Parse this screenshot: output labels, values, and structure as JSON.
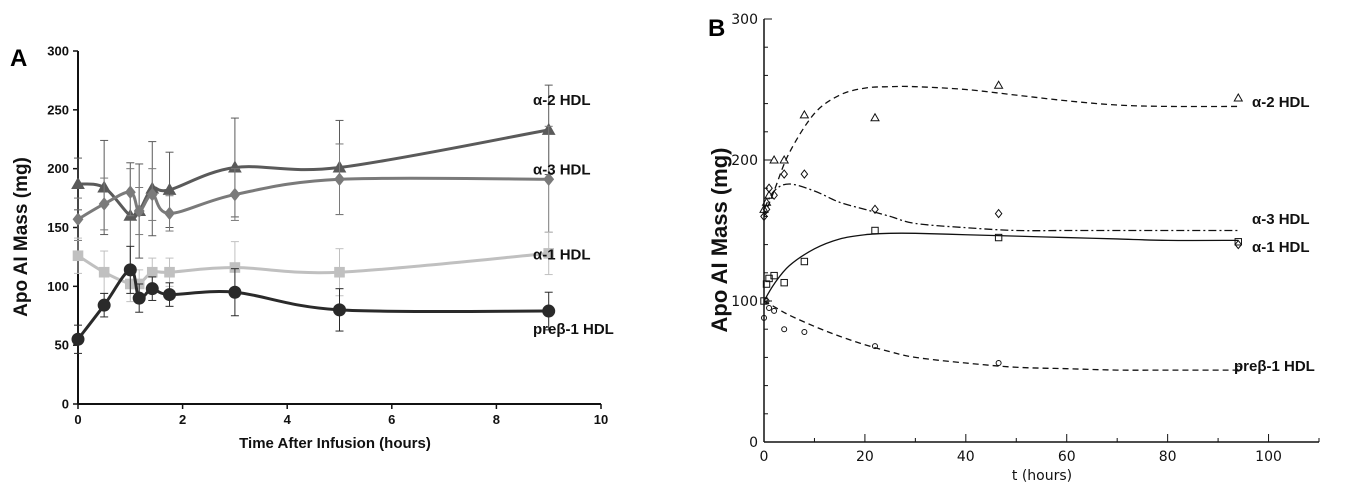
{
  "chart_data": [
    {
      "panel": "A",
      "type": "line",
      "xlabel": "Time After Infusion (hours)",
      "ylabel": "Apo AI Mass (mg)",
      "xlim": [
        0,
        10
      ],
      "ylim": [
        0,
        300
      ],
      "xticks": [
        "0",
        "2",
        "4",
        "6",
        "8",
        "10"
      ],
      "yticks": [
        "0",
        "50",
        "100",
        "150",
        "200",
        "250",
        "300"
      ],
      "grid": false,
      "series": [
        {
          "name": "α-2 HDL",
          "marker": "triangle",
          "color": "#5a5a5a",
          "x": [
            0,
            0.5,
            1,
            1.17,
            1.42,
            1.75,
            3,
            5,
            9
          ],
          "y": [
            187,
            184,
            160,
            164,
            183,
            182,
            201,
            201,
            233
          ],
          "err": [
            22,
            40,
            45,
            40,
            40,
            32,
            42,
            40,
            38
          ]
        },
        {
          "name": "α-3 HDL",
          "marker": "diamond",
          "color": "#7a7a7a",
          "x": [
            0,
            0.5,
            1,
            1.17,
            1.42,
            1.75,
            3,
            5,
            9
          ],
          "y": [
            157,
            170,
            180,
            164,
            178,
            162,
            178,
            191,
            191
          ],
          "err": [
            18,
            22,
            20,
            20,
            22,
            15,
            22,
            30,
            45
          ]
        },
        {
          "name": "α-1 HDL",
          "marker": "square",
          "color": "#c0c0c0",
          "x": [
            0,
            0.5,
            1,
            1.17,
            1.42,
            1.75,
            3,
            5,
            9
          ],
          "y": [
            126,
            112,
            102,
            102,
            112,
            112,
            116,
            112,
            128
          ],
          "err": [
            15,
            18,
            15,
            12,
            12,
            12,
            22,
            20,
            18
          ]
        },
        {
          "name": "preβ-1 HDL",
          "marker": "circle",
          "color": "#2a2a2a",
          "x": [
            0,
            0.5,
            1,
            1.17,
            1.42,
            1.75,
            3,
            5,
            9
          ],
          "y": [
            55,
            84,
            114,
            90,
            98,
            93,
            95,
            80,
            79
          ],
          "err": [
            12,
            10,
            20,
            12,
            10,
            10,
            20,
            18,
            16
          ]
        }
      ]
    },
    {
      "panel": "B",
      "type": "scatter",
      "xlabel": "t (hours)",
      "ylabel": "Apo AI Mass (mg)",
      "xlim": [
        0,
        110
      ],
      "ylim": [
        0,
        300
      ],
      "xticks": [
        "0",
        "20",
        "40",
        "60",
        "80",
        "100"
      ],
      "yticks": [
        "0",
        "100",
        "200",
        "300"
      ],
      "grid": false,
      "series": [
        {
          "name": "α-2 HDL",
          "marker": "triangle",
          "line": "dashed",
          "points_x": [
            0,
            0.5,
            1,
            2,
            4,
            8,
            22,
            46.5,
            94
          ],
          "points_y": [
            165,
            170,
            175,
            200,
            200,
            232,
            230,
            253,
            244
          ],
          "fit_x": [
            0,
            2,
            5,
            10,
            15,
            20,
            25,
            30,
            40,
            50,
            60,
            70,
            80,
            94
          ],
          "fit_y": [
            160,
            178,
            205,
            233,
            246,
            251,
            252,
            252,
            250,
            246,
            242,
            239,
            238,
            238
          ]
        },
        {
          "name": "α-3 HDL",
          "marker": "diamond",
          "line": "dashdot",
          "points_x": [
            0,
            0.5,
            1,
            2,
            4,
            8,
            22,
            46.5,
            94
          ],
          "points_y": [
            160,
            165,
            180,
            175,
            190,
            190,
            165,
            162,
            140
          ],
          "fit_x": [
            0,
            2,
            5,
            10,
            15,
            20,
            25,
            30,
            40,
            50,
            60,
            70,
            80,
            94
          ],
          "fit_y": [
            165,
            178,
            183,
            178,
            170,
            165,
            160,
            155,
            152,
            150,
            150,
            150,
            150,
            150
          ]
        },
        {
          "name": "α-1 HDL",
          "marker": "square",
          "line": "solid",
          "points_x": [
            0,
            0.5,
            1,
            2,
            4,
            8,
            22,
            46.5,
            94
          ],
          "points_y": [
            100,
            112,
            116,
            118,
            113,
            128,
            150,
            145,
            142
          ],
          "fit_x": [
            0,
            2,
            5,
            10,
            15,
            20,
            25,
            30,
            40,
            50,
            60,
            70,
            80,
            94
          ],
          "fit_y": [
            100,
            112,
            125,
            137,
            144,
            147,
            148,
            148,
            147,
            146,
            145,
            144,
            143,
            143
          ]
        },
        {
          "name": "preβ-1 HDL",
          "marker": "circle",
          "line": "dashed",
          "points_x": [
            0,
            0.5,
            1,
            2,
            4,
            8,
            22,
            46.5,
            94
          ],
          "points_y": [
            88,
            100,
            95,
            93,
            80,
            78,
            68,
            56,
            52
          ],
          "fit_x": [
            0,
            2,
            5,
            10,
            15,
            20,
            25,
            30,
            40,
            50,
            60,
            70,
            80,
            94
          ],
          "fit_y": [
            100,
            96,
            90,
            82,
            75,
            69,
            64,
            60,
            56,
            53,
            52,
            51,
            51,
            51
          ]
        }
      ]
    }
  ]
}
